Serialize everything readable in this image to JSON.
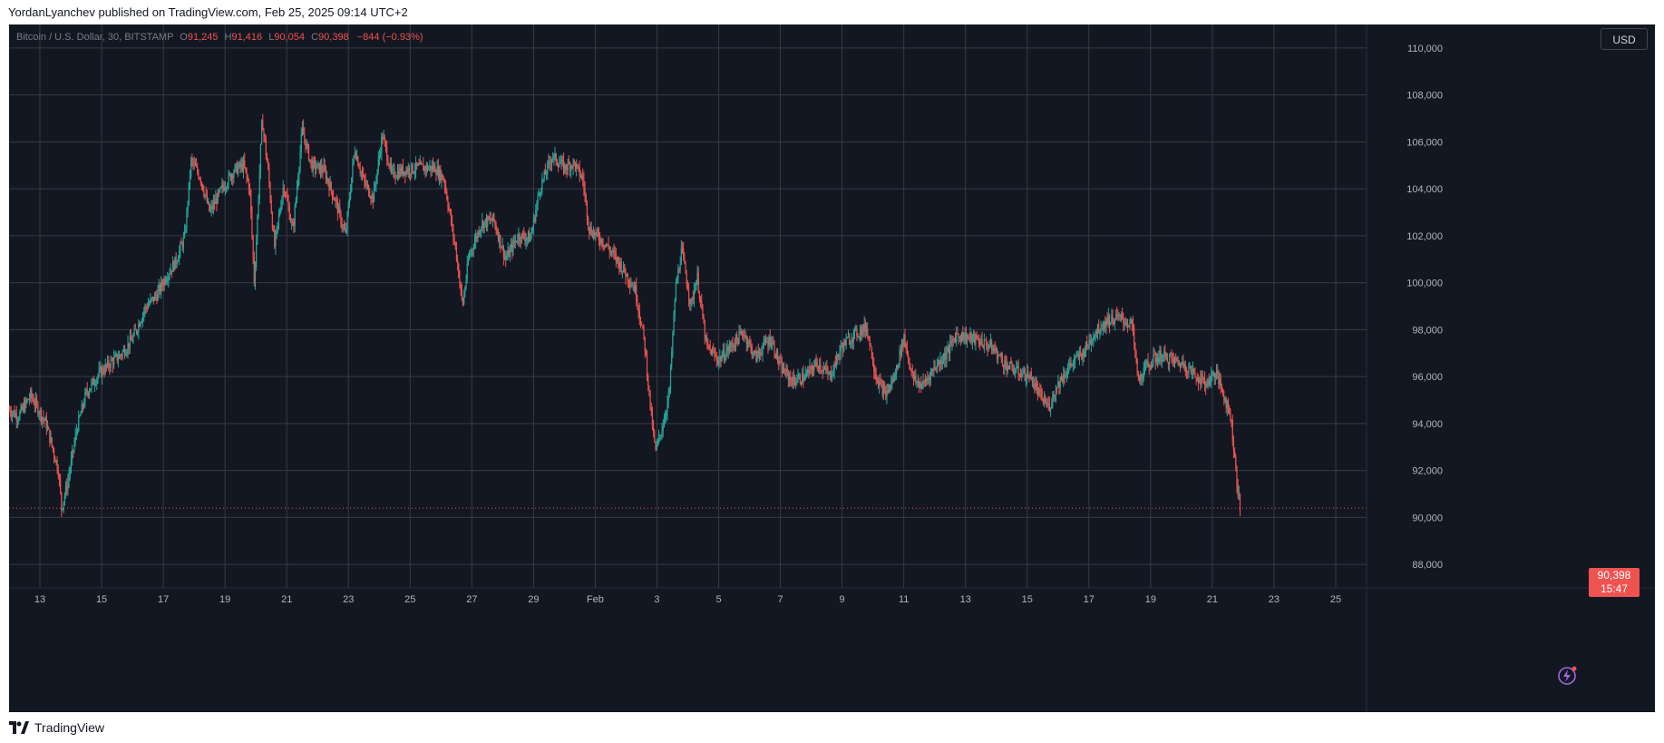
{
  "header": {
    "caption": "YordanLyanchev published on TradingView.com, Feb 25, 2025 09:14 UTC+2"
  },
  "legend": {
    "symbol": "Bitcoin / U.S. Dollar, 30, BITSTAMP",
    "o_label": "O",
    "o_value": "91,245",
    "h_label": "H",
    "h_value": "91,416",
    "l_label": "L",
    "l_value": "90,054",
    "c_label": "C",
    "c_value": "90,398",
    "change": "−844 (−0.93%)"
  },
  "currency_button": "USD",
  "price_tag": {
    "price": "90,398",
    "countdown": "15:47"
  },
  "footer": {
    "brand": "TradingView"
  },
  "colors": {
    "background": "#131722",
    "grid": "#363a45",
    "up": "#26a69a",
    "down": "#ef5350",
    "axis_text": "#b2b5be"
  },
  "chart_data": {
    "type": "candlestick",
    "title": "Bitcoin / U.S. Dollar, 30, BITSTAMP",
    "ylim": [
      87000,
      111000
    ],
    "y_ticks": [
      88000,
      90000,
      92000,
      94000,
      96000,
      98000,
      100000,
      102000,
      104000,
      106000,
      108000,
      110000
    ],
    "y_tick_labels": [
      "88,000",
      "90,000",
      "92,000",
      "94,000",
      "96,000",
      "98,000",
      "100,000",
      "102,000",
      "104,000",
      "106,000",
      "108,000",
      "110,000"
    ],
    "x_tick_labels": [
      "13",
      "15",
      "17",
      "19",
      "21",
      "23",
      "25",
      "27",
      "29",
      "Feb",
      "3",
      "5",
      "7",
      "9",
      "11",
      "13",
      "15",
      "17",
      "19",
      "21",
      "23",
      "25"
    ],
    "x_domain_days": [
      0,
      44
    ],
    "x_tick_positions_days": [
      1,
      3,
      5,
      7,
      9,
      11,
      13,
      15,
      17,
      19,
      21,
      23,
      25,
      27,
      29,
      31,
      33,
      35,
      37,
      39,
      41,
      43
    ],
    "grid": true,
    "last_price": 90398,
    "approx_path": [
      [
        0,
        94600
      ],
      [
        0.3,
        94300
      ],
      [
        0.7,
        95200
      ],
      [
        1.2,
        94000
      ],
      [
        1.6,
        92000
      ],
      [
        1.7,
        90400
      ],
      [
        1.9,
        91500
      ],
      [
        2.2,
        93800
      ],
      [
        2.5,
        95300
      ],
      [
        2.9,
        96100
      ],
      [
        3.3,
        96600
      ],
      [
        3.6,
        96900
      ],
      [
        4.0,
        97600
      ],
      [
        4.4,
        98900
      ],
      [
        4.8,
        99500
      ],
      [
        5.1,
        100300
      ],
      [
        5.4,
        100900
      ],
      [
        5.7,
        102000
      ],
      [
        5.9,
        105200
      ],
      [
        6.2,
        104500
      ],
      [
        6.5,
        103000
      ],
      [
        6.9,
        104000
      ],
      [
        7.3,
        104800
      ],
      [
        7.6,
        105000
      ],
      [
        7.8,
        104000
      ],
      [
        7.95,
        100000
      ],
      [
        8.2,
        107000
      ],
      [
        8.4,
        104700
      ],
      [
        8.6,
        101500
      ],
      [
        8.9,
        104200
      ],
      [
        9.2,
        102200
      ],
      [
        9.5,
        106500
      ],
      [
        9.8,
        105000
      ],
      [
        10.2,
        104800
      ],
      [
        10.6,
        103400
      ],
      [
        10.9,
        102000
      ],
      [
        11.2,
        105700
      ],
      [
        11.5,
        104300
      ],
      [
        11.8,
        103600
      ],
      [
        12.1,
        106300
      ],
      [
        12.4,
        104600
      ],
      [
        12.8,
        104800
      ],
      [
        13.3,
        104900
      ],
      [
        13.8,
        104900
      ],
      [
        14.1,
        104400
      ],
      [
        14.5,
        101200
      ],
      [
        14.7,
        99000
      ],
      [
        14.9,
        101100
      ],
      [
        15.3,
        102500
      ],
      [
        15.7,
        102700
      ],
      [
        16.1,
        101000
      ],
      [
        16.5,
        102000
      ],
      [
        16.9,
        101900
      ],
      [
        17.2,
        104000
      ],
      [
        17.6,
        105400
      ],
      [
        18.0,
        104900
      ],
      [
        18.3,
        105100
      ],
      [
        18.6,
        104400
      ],
      [
        18.8,
        102300
      ],
      [
        19.3,
        101700
      ],
      [
        19.8,
        100800
      ],
      [
        20.3,
        99700
      ],
      [
        20.6,
        97400
      ],
      [
        20.8,
        94500
      ],
      [
        20.95,
        92800
      ],
      [
        21.2,
        94000
      ],
      [
        21.4,
        95300
      ],
      [
        21.6,
        99700
      ],
      [
        21.8,
        101400
      ],
      [
        22.1,
        99000
      ],
      [
        22.3,
        100300
      ],
      [
        22.6,
        97300
      ],
      [
        23.0,
        96700
      ],
      [
        23.4,
        97300
      ],
      [
        23.8,
        97900
      ],
      [
        24.2,
        96800
      ],
      [
        24.5,
        97400
      ],
      [
        24.7,
        97600
      ],
      [
        25.0,
        96400
      ],
      [
        25.4,
        95800
      ],
      [
        25.8,
        96000
      ],
      [
        26.2,
        96600
      ],
      [
        26.6,
        96000
      ],
      [
        27.0,
        97300
      ],
      [
        27.4,
        97800
      ],
      [
        27.8,
        98100
      ],
      [
        28.1,
        96000
      ],
      [
        28.4,
        95200
      ],
      [
        28.7,
        96000
      ],
      [
        29.0,
        97700
      ],
      [
        29.3,
        95900
      ],
      [
        29.6,
        95600
      ],
      [
        30.0,
        96400
      ],
      [
        30.4,
        97000
      ],
      [
        30.7,
        97800
      ],
      [
        31.0,
        97700
      ],
      [
        31.5,
        97500
      ],
      [
        31.9,
        97200
      ],
      [
        32.3,
        96500
      ],
      [
        32.7,
        96200
      ],
      [
        33.1,
        96000
      ],
      [
        33.4,
        95200
      ],
      [
        33.7,
        94700
      ],
      [
        34.0,
        95700
      ],
      [
        34.4,
        96500
      ],
      [
        34.8,
        97000
      ],
      [
        35.2,
        97900
      ],
      [
        35.6,
        98400
      ],
      [
        36.0,
        98500
      ],
      [
        36.4,
        98200
      ],
      [
        36.6,
        95800
      ],
      [
        36.9,
        96500
      ],
      [
        37.3,
        96900
      ],
      [
        37.7,
        96700
      ],
      [
        38.1,
        96500
      ],
      [
        38.5,
        96000
      ],
      [
        38.8,
        95700
      ],
      [
        39.1,
        96200
      ],
      [
        39.3,
        95500
      ],
      [
        39.6,
        94300
      ],
      [
        39.8,
        91500
      ],
      [
        39.9,
        90398
      ]
    ]
  }
}
